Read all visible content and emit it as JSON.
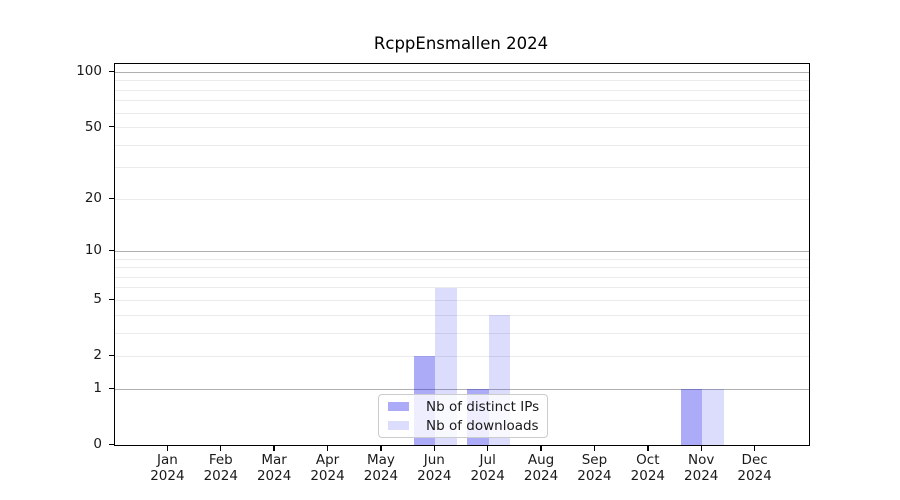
{
  "chart_data": {
    "type": "bar",
    "title": "RcppEnsmallen 2024",
    "scale": "log1p",
    "categories": [
      "Jan",
      "Feb",
      "Mar",
      "Apr",
      "May",
      "Jun",
      "Jul",
      "Aug",
      "Sep",
      "Oct",
      "Nov",
      "Dec"
    ],
    "year_labels": [
      "2024",
      "2024",
      "2024",
      "2024",
      "2024",
      "2024",
      "2024",
      "2024",
      "2024",
      "2024",
      "2024",
      "2024"
    ],
    "series": [
      {
        "name": "Nb of distinct IPs",
        "color": "rgba(10,10,235,0.34)",
        "values": [
          0,
          0,
          0,
          0,
          0,
          2,
          1,
          0,
          0,
          0,
          1,
          0
        ]
      },
      {
        "name": "Nb of downloads",
        "color": "rgba(10,10,235,0.14)",
        "values": [
          0,
          0,
          0,
          0,
          0,
          6,
          4,
          0,
          0,
          0,
          1,
          0
        ]
      }
    ],
    "xlabel": "",
    "ylabel": "",
    "yticks": [
      0,
      1,
      2,
      5,
      10,
      20,
      50,
      100
    ],
    "major_gridlines": [
      1,
      10,
      100
    ],
    "minor_gridlines": [
      2,
      3,
      4,
      5,
      6,
      7,
      8,
      9,
      20,
      30,
      40,
      50,
      60,
      70,
      80,
      90
    ],
    "ylim": [
      0,
      111
    ],
    "grid": true,
    "legend_position": "lower center",
    "colors": {
      "frame": "#000000",
      "major_grid": "#b0b0b0",
      "minor_grid": "#ebebeb",
      "text": "#1a1a1a",
      "legend_border": "#cccccc",
      "legend_bg": "rgba(255,255,255,0.8)"
    }
  }
}
